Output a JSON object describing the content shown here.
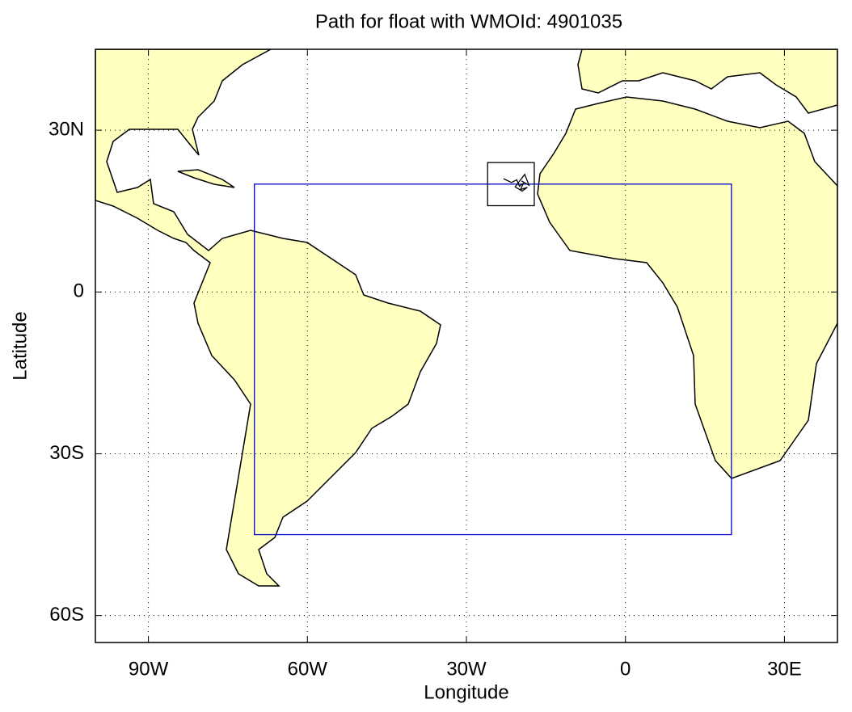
{
  "chart_data": {
    "type": "map",
    "title": "Path for float with WMOId: 4901035",
    "x_label": "Longitude",
    "y_label": "Latitude",
    "xlim": [
      -100,
      40
    ],
    "ylim": [
      -65,
      45
    ],
    "xticks": [
      {
        "value": -90,
        "label": "90W"
      },
      {
        "value": -60,
        "label": "60W"
      },
      {
        "value": -30,
        "label": "30W"
      },
      0,
      {
        "value": 30,
        "label": "30E"
      }
    ],
    "yticks": [
      {
        "value": 30,
        "label": "30N"
      },
      0,
      {
        "value": -30,
        "label": "30S"
      },
      {
        "value": -60,
        "label": "60S"
      }
    ],
    "grid": true,
    "land_color": "#ffffc0",
    "region": {
      "color": "#0000cc",
      "lon": [
        -70,
        20
      ],
      "lat": [
        -45,
        20
      ]
    },
    "float_box": {
      "lon": [
        -26,
        -17.2
      ],
      "lat": [
        16,
        24
      ]
    },
    "float_path": {
      "lon": [
        -23,
        -21.5,
        -20.5,
        -20,
        -19.2,
        -19.8,
        -18.5,
        -19.5,
        -20.8,
        -19,
        -18.2,
        -19.6
      ],
      "lat": [
        21,
        20.3,
        20.8,
        19.6,
        20.2,
        19,
        19.4,
        18.7,
        19.5,
        21.8,
        19.8,
        20.6
      ]
    }
  }
}
